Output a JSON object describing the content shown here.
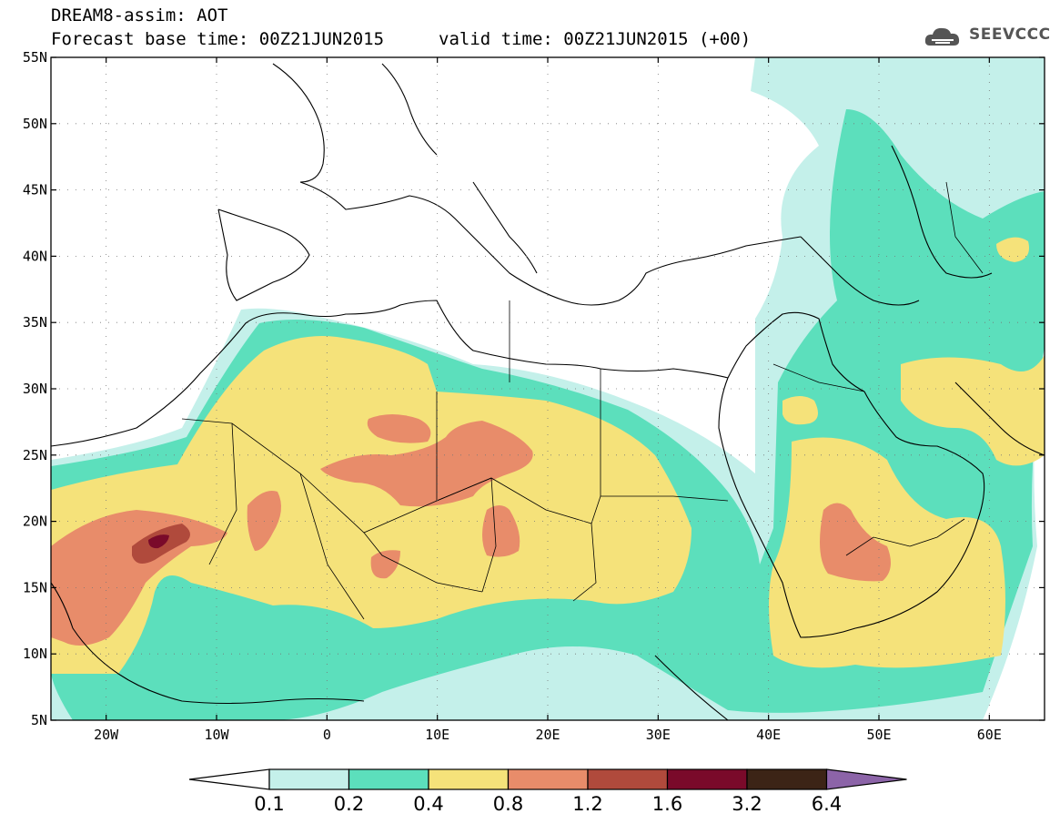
{
  "header": {
    "model_line": "DREAM8-assim: AOT",
    "base_time_line": "Forecast base time: 00Z21JUN2015",
    "valid_time_line": "valid time: 00Z21JUN2015 (+00)",
    "logo_text": "SEEVCCC"
  },
  "axes": {
    "lat_labels": [
      "55N",
      "50N",
      "45N",
      "40N",
      "35N",
      "30N",
      "25N",
      "20N",
      "15N",
      "10N",
      "5N"
    ],
    "lon_labels": [
      "20W",
      "10W",
      "0",
      "10E",
      "20E",
      "30E",
      "40E",
      "50E",
      "60E"
    ]
  },
  "legend": {
    "levels": [
      "0.1",
      "0.2",
      "0.4",
      "0.8",
      "1.2",
      "1.6",
      "3.2",
      "6.4"
    ],
    "colors": [
      "#c4f0ea",
      "#5cdfbc",
      "#f5e27a",
      "#e88c6a",
      "#b04a3c",
      "#7a0a2a",
      "#3c2416",
      "#8c64a8"
    ]
  },
  "map_colors": {
    "c01": "#c4f0ea",
    "c02": "#5cdfbc",
    "c04": "#f5e27a",
    "c08": "#e88c6a",
    "c12": "#b04a3c",
    "c16": "#7a0a2a"
  }
}
